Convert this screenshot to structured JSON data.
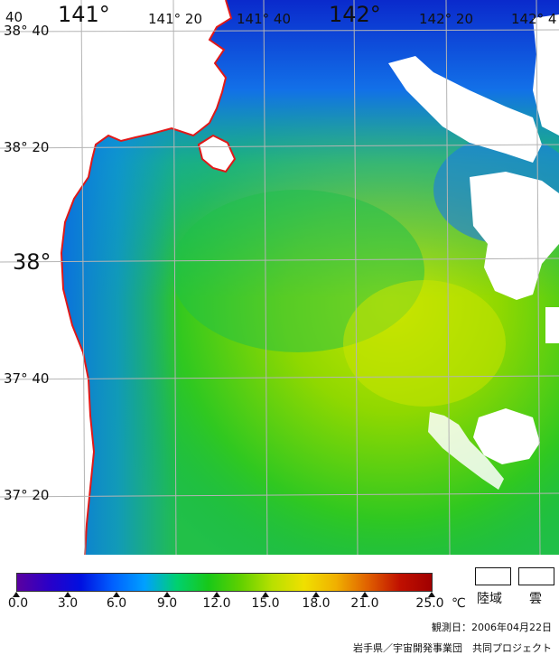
{
  "map": {
    "lon_labels": [
      "141°",
      "141° 20",
      "141° 40",
      "142°",
      "142° 20",
      "142° 4"
    ],
    "lat_labels": [
      "38° 40",
      "38° 20",
      "38°",
      "37° 40",
      "37° 20"
    ],
    "corner_label": "40"
  },
  "colorbar": {
    "ticks": [
      "0.0",
      "3.0",
      "6.0",
      "9.0",
      "12.0",
      "15.0",
      "18.0",
      "21.0",
      "25.0"
    ],
    "unit": "℃"
  },
  "legend": {
    "land": "陸域",
    "cloud": "雲"
  },
  "footer": {
    "obs_date": "観測日：2006年04月22日",
    "credit": "岩手県／宇宙開発事業団　共同プロジェクト"
  },
  "colors": {
    "coastline": "#e01818",
    "grid": "#b4b4b4",
    "land": "#ffffff",
    "cloud": "#ffffff"
  }
}
